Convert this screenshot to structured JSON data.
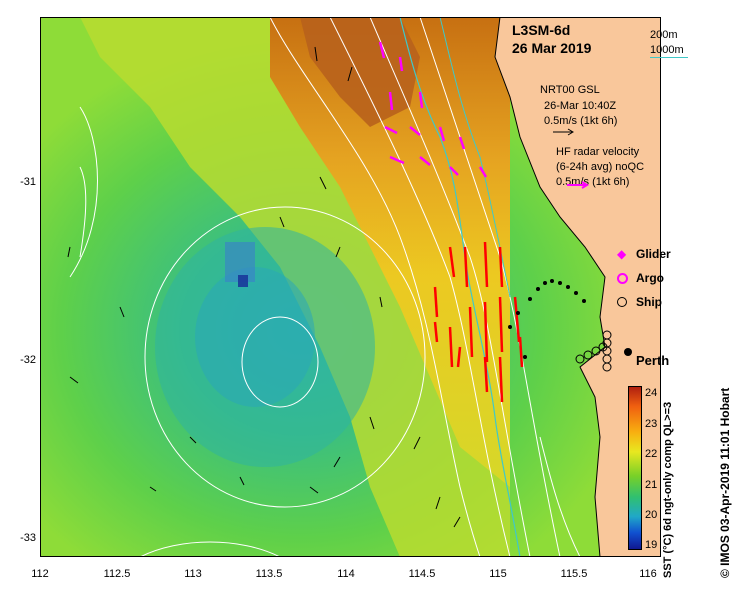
{
  "map": {
    "product": "L3SM-6d",
    "date": "26 Mar 2019",
    "depth_legend": [
      "200m",
      "1000m"
    ],
    "depth_colors": {
      "200m": "#ffffff",
      "1000m": "#40c8c8"
    },
    "ship_info": [
      "NRT00 GSL",
      "26-Mar 10:40Z",
      "0.5m/s (1kt 6h)"
    ],
    "hf_info": [
      "HF radar velocity",
      "(6-24h avg) noQC",
      "0.5m/s (1kt 6h)"
    ],
    "legend": {
      "glider": "Glider",
      "argo": "Argo",
      "ship": "Ship"
    },
    "city": "Perth",
    "x_ticks": [
      "112",
      "112.5",
      "113",
      "113.5",
      "114",
      "114.5",
      "115",
      "115.5",
      "116"
    ],
    "y_ticks": [
      "-31",
      "-32",
      "-33"
    ],
    "colorbar": {
      "label": "SST (°C) 6d ngt-only comp QL>=3",
      "ticks": [
        "24",
        "23",
        "22",
        "21",
        "20",
        "19"
      ],
      "range": [
        19,
        24.3
      ]
    },
    "credit": "© IMOS 03-Apr-2019 11:01 Hobart",
    "colors": {
      "land": "#f9c79b",
      "glider": "#ff00ff",
      "hf_arrows": "#ff0000",
      "ship_arrows": "#000000"
    }
  }
}
